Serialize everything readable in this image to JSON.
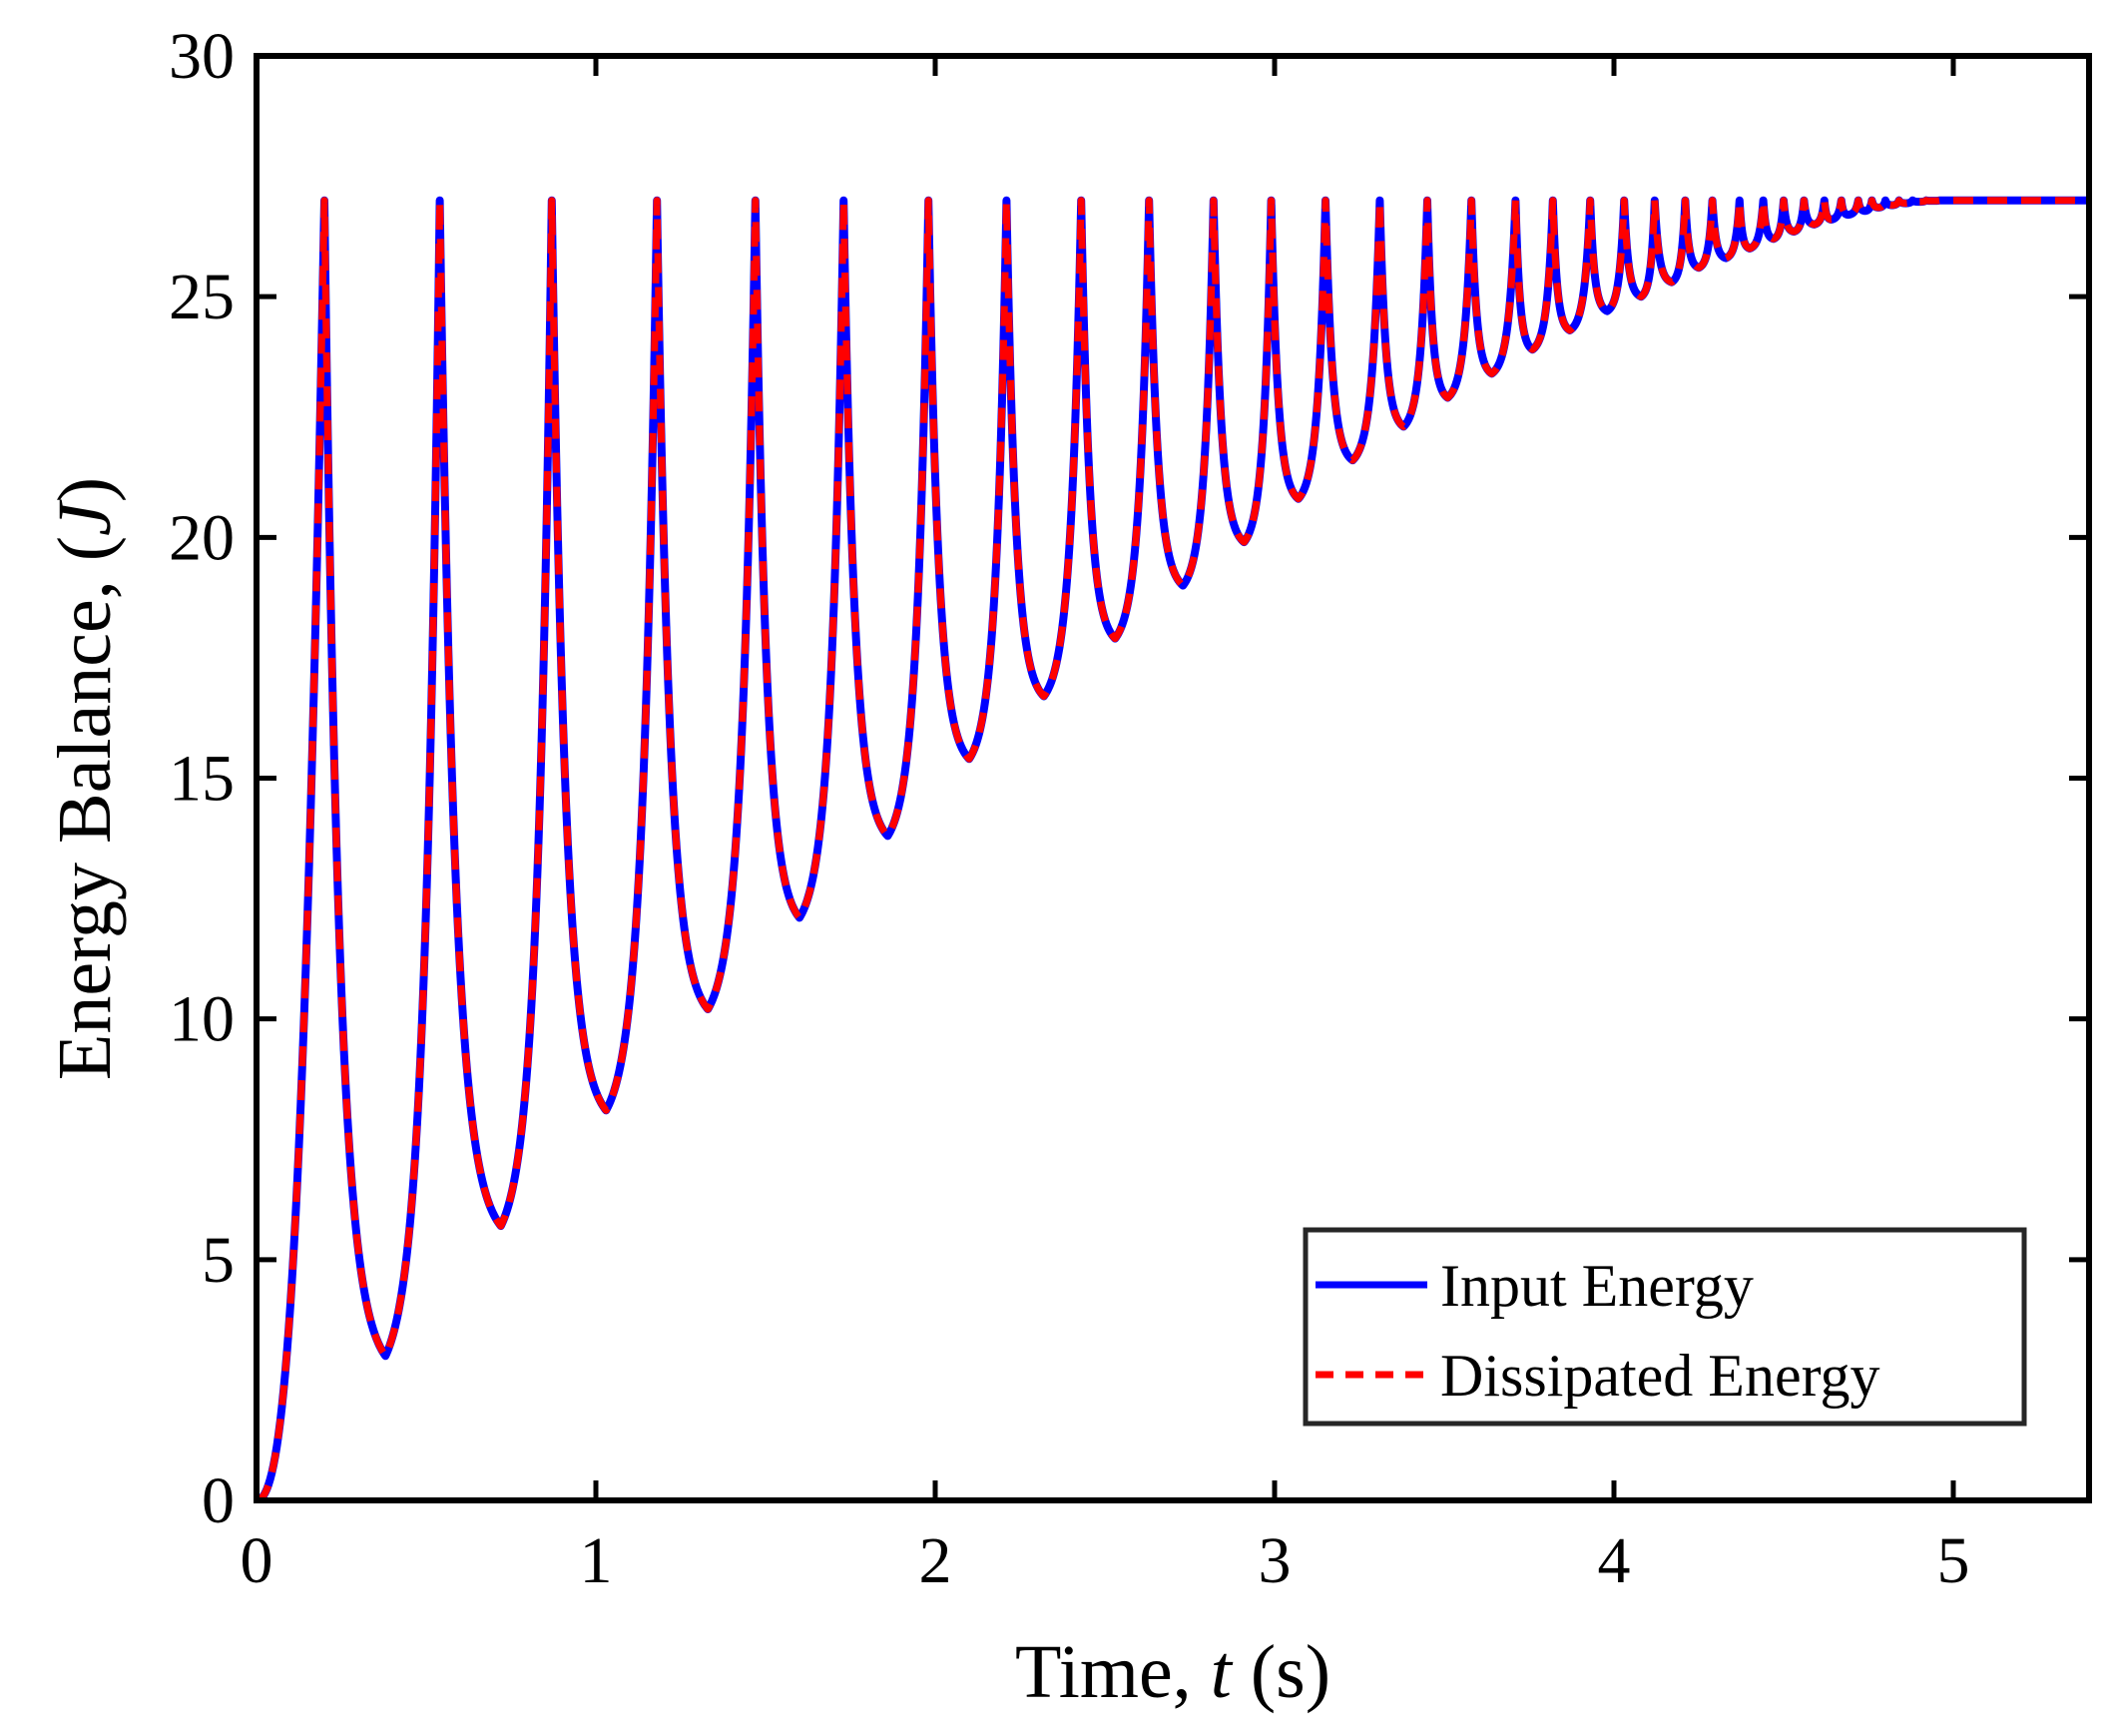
{
  "chart_data": {
    "type": "line",
    "title": "",
    "xlabel_parts": [
      "Time, ",
      "t",
      " (s)"
    ],
    "ylabel_parts": [
      "Energy Balance, (",
      "J",
      ")"
    ],
    "xlim": [
      0,
      5.4
    ],
    "ylim": [
      0,
      30
    ],
    "x_ticks": [
      0,
      1,
      2,
      3,
      4,
      5
    ],
    "y_ticks": [
      0,
      5,
      10,
      15,
      20,
      25,
      30
    ],
    "x_tick_labels": [
      "0",
      "1",
      "2",
      "3",
      "4",
      "5"
    ],
    "y_tick_labels": [
      "0",
      "5",
      "10",
      "15",
      "20",
      "25",
      "30"
    ],
    "grid": false,
    "legend_position": "bottom-right",
    "series": [
      {
        "name": "Input Energy",
        "color": "#0000ff",
        "style": "solid"
      },
      {
        "name": "Dissipated Energy",
        "color": "#ff0000",
        "style": "dashed"
      }
    ],
    "peak_value": 27.0,
    "peak_times": [
      0.2,
      0.54,
      0.87,
      1.18,
      1.47,
      1.73,
      1.98,
      2.21,
      2.43,
      2.63,
      2.82,
      2.99,
      3.15,
      3.31,
      3.45,
      3.58,
      3.71,
      3.82,
      3.93,
      4.03,
      4.12,
      4.21,
      4.29,
      4.37,
      4.44,
      4.5,
      4.56,
      4.62,
      4.67,
      4.72,
      4.76,
      4.8,
      4.84,
      4.88,
      4.92,
      4.96
    ],
    "trough_times": [
      0.38,
      0.72,
      1.03,
      1.33,
      1.6,
      1.86,
      2.1,
      2.32,
      2.53,
      2.73,
      2.91,
      3.07,
      3.23,
      3.38,
      3.51,
      3.64,
      3.76,
      3.87,
      3.98,
      4.08,
      4.17,
      4.25,
      4.33,
      4.4,
      4.47,
      4.53,
      4.59,
      4.64,
      4.69,
      4.74,
      4.78,
      4.82,
      4.86,
      4.9,
      4.94
    ],
    "trough_values": [
      3.0,
      5.7,
      8.1,
      10.2,
      12.1,
      13.8,
      15.4,
      16.7,
      17.9,
      19.0,
      19.9,
      20.8,
      21.6,
      22.3,
      22.9,
      23.4,
      23.9,
      24.3,
      24.7,
      25.0,
      25.3,
      25.6,
      25.8,
      26.0,
      26.2,
      26.35,
      26.5,
      26.6,
      26.7,
      26.78,
      26.85,
      26.9,
      26.94,
      26.97,
      26.99
    ],
    "final_time": 5.4,
    "final_value": 27.0
  }
}
